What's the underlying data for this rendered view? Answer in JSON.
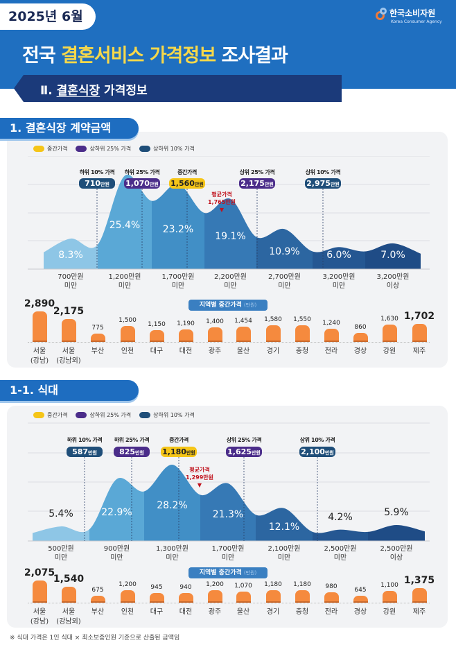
{
  "header": {
    "date": "2025년 6월",
    "title_pre": "전국 ",
    "title_highlight": "결혼서비스 가격정보",
    "title_post": " 조사결과",
    "logo_name": "한국소비자원",
    "logo_sub": "Korea Consumer Agency",
    "banner_num": "Ⅱ. ",
    "banner_underlined": "결혼식장",
    "banner_rest": " 가격정보"
  },
  "legend": [
    {
      "label": "중간가격",
      "color": "#f5c518"
    },
    {
      "label": "상하위 25% 가격",
      "color": "#4b2d8a"
    },
    {
      "label": "상하위 10% 가격",
      "color": "#1f4e79"
    }
  ],
  "colors": {
    "median": "#f5c518",
    "q25": "#4b2d8a",
    "q10": "#1f4e79",
    "bar": "#f58a3e",
    "average": "#c0121c"
  },
  "chart_data": [
    {
      "type": "area",
      "section_title": "1. 결혼식장 계약금액",
      "categories": [
        "700만원\n미만",
        "1,200만원\n미만",
        "1,700만원\n미만",
        "2,200만원\n미만",
        "2,700만원\n미만",
        "3,200만원\n미만",
        "3,200만원\n이상"
      ],
      "values": [
        8.3,
        25.4,
        23.2,
        19.1,
        10.9,
        6.0,
        7.0
      ],
      "value_labels": [
        "8.3%",
        "25.4%",
        "23.2%",
        "19.1%",
        "10.9%",
        "6.0%",
        "7.0%"
      ],
      "grid": true,
      "markers": [
        {
          "label": "하위 10% 가격",
          "value": "710",
          "unit": "만원",
          "tier": "q10"
        },
        {
          "label": "하위 25% 가격",
          "value": "1,070",
          "unit": "만원",
          "tier": "q25"
        },
        {
          "label": "중간가격",
          "value": "1,560",
          "unit": "만원",
          "tier": "median"
        },
        {
          "label": "상위 25% 가격",
          "value": "2,175",
          "unit": "만원",
          "tier": "q25"
        },
        {
          "label": "상위 10% 가격",
          "value": "2,975",
          "unit": "만원",
          "tier": "q10"
        }
      ],
      "average": {
        "label": "평균가격",
        "value": "1,765만원",
        "amount": 1765
      }
    },
    {
      "type": "bar",
      "title": "지역별 중간가격",
      "unit": "(만원)",
      "categories": [
        "서울\n(강남)",
        "서울\n(강남외)",
        "부산",
        "인천",
        "대구",
        "대전",
        "광주",
        "울산",
        "경기",
        "충청",
        "전라",
        "경상",
        "강원",
        "제주"
      ],
      "values": [
        2890,
        2175,
        775,
        1500,
        1150,
        1190,
        1400,
        1454,
        1580,
        1550,
        1240,
        860,
        1630,
        1702
      ],
      "value_labels": [
        "2,890",
        "2,175",
        "775",
        "1,500",
        "1,150",
        "1,190",
        "1,400",
        "1,454",
        "1,580",
        "1,550",
        "1,240",
        "860",
        "1,630",
        "1,702"
      ]
    },
    {
      "type": "area",
      "section_title": "1-1. 식대",
      "categories": [
        "500만원\n미만",
        "900만원\n미만",
        "1,300만원\n미만",
        "1,700만원\n미만",
        "2,100만원\n미만",
        "2,500만원\n미만",
        "2,500만원\n이상"
      ],
      "values": [
        5.4,
        22.9,
        28.2,
        21.3,
        12.1,
        4.2,
        5.9
      ],
      "value_labels": [
        "5.4%",
        "22.9%",
        "28.2%",
        "21.3%",
        "12.1%",
        "4.2%",
        "5.9%"
      ],
      "grid": true,
      "markers": [
        {
          "label": "하위 10% 가격",
          "value": "587",
          "unit": "만원",
          "tier": "q10"
        },
        {
          "label": "하위 25% 가격",
          "value": "825",
          "unit": "만원",
          "tier": "q25"
        },
        {
          "label": "중간가격",
          "value": "1,180",
          "unit": "만원",
          "tier": "median"
        },
        {
          "label": "상위 25% 가격",
          "value": "1,625",
          "unit": "만원",
          "tier": "q25"
        },
        {
          "label": "상위 10% 가격",
          "value": "2,100",
          "unit": "만원",
          "tier": "q10"
        }
      ],
      "average": {
        "label": "평균가격",
        "value": "1,299만원",
        "amount": 1299
      }
    },
    {
      "type": "bar",
      "title": "지역별 중간가격",
      "unit": "(만원)",
      "categories": [
        "서울\n(강남)",
        "서울\n(강남외)",
        "부산",
        "인천",
        "대구",
        "대전",
        "광주",
        "울산",
        "경기",
        "충청",
        "전라",
        "경상",
        "강원",
        "제주"
      ],
      "values": [
        2075,
        1540,
        675,
        1200,
        945,
        940,
        1200,
        1070,
        1180,
        1180,
        980,
        645,
        1100,
        1375
      ],
      "value_labels": [
        "2,075",
        "1,540",
        "675",
        "1,200",
        "945",
        "940",
        "1,200",
        "1,070",
        "1,180",
        "1,180",
        "980",
        "645",
        "1,100",
        "1,375"
      ]
    }
  ],
  "footnote": "※ 식대 가격은 1인 식대 × 최소보증인원 기준으로 산출된 금액임"
}
